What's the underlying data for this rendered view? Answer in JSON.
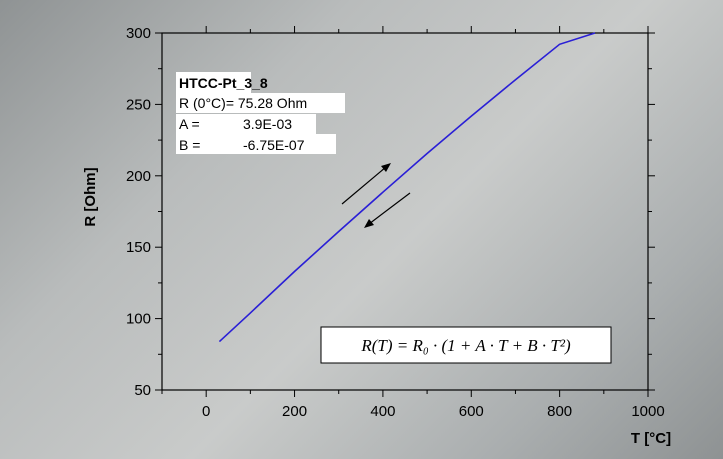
{
  "chart_data": {
    "type": "line",
    "title": "",
    "xlabel": "T [°C]",
    "ylabel": "R [Ohm]",
    "xlim": [
      -100,
      1000
    ],
    "ylim": [
      50,
      300
    ],
    "xticks": [
      0,
      200,
      400,
      600,
      800,
      1000
    ],
    "yticks": [
      50,
      100,
      150,
      200,
      250,
      300
    ],
    "grid": false,
    "line_color": "#2a1fd6",
    "series": [
      {
        "x": [
          30,
          100,
          200,
          300,
          400,
          500,
          600,
          700,
          800,
          880
        ],
        "y": [
          83.9,
          104.0,
          133.0,
          161.0,
          188.5,
          215.6,
          241.8,
          267.3,
          292.1,
          300
        ]
      }
    ],
    "info_box": {
      "title": "HTCC-Pt_3_8",
      "lines": [
        {
          "label": "R (0°C)= 75.28 Ohm",
          "value": ""
        },
        {
          "label": "A =",
          "value": "3.9E-03"
        },
        {
          "label": "B =",
          "value": "-6.75E-07"
        }
      ]
    },
    "formula": "R(T) = R₀ · (1 + A · T + B · T²)",
    "annotations": [
      "arrow-up-right",
      "arrow-down-left"
    ]
  }
}
